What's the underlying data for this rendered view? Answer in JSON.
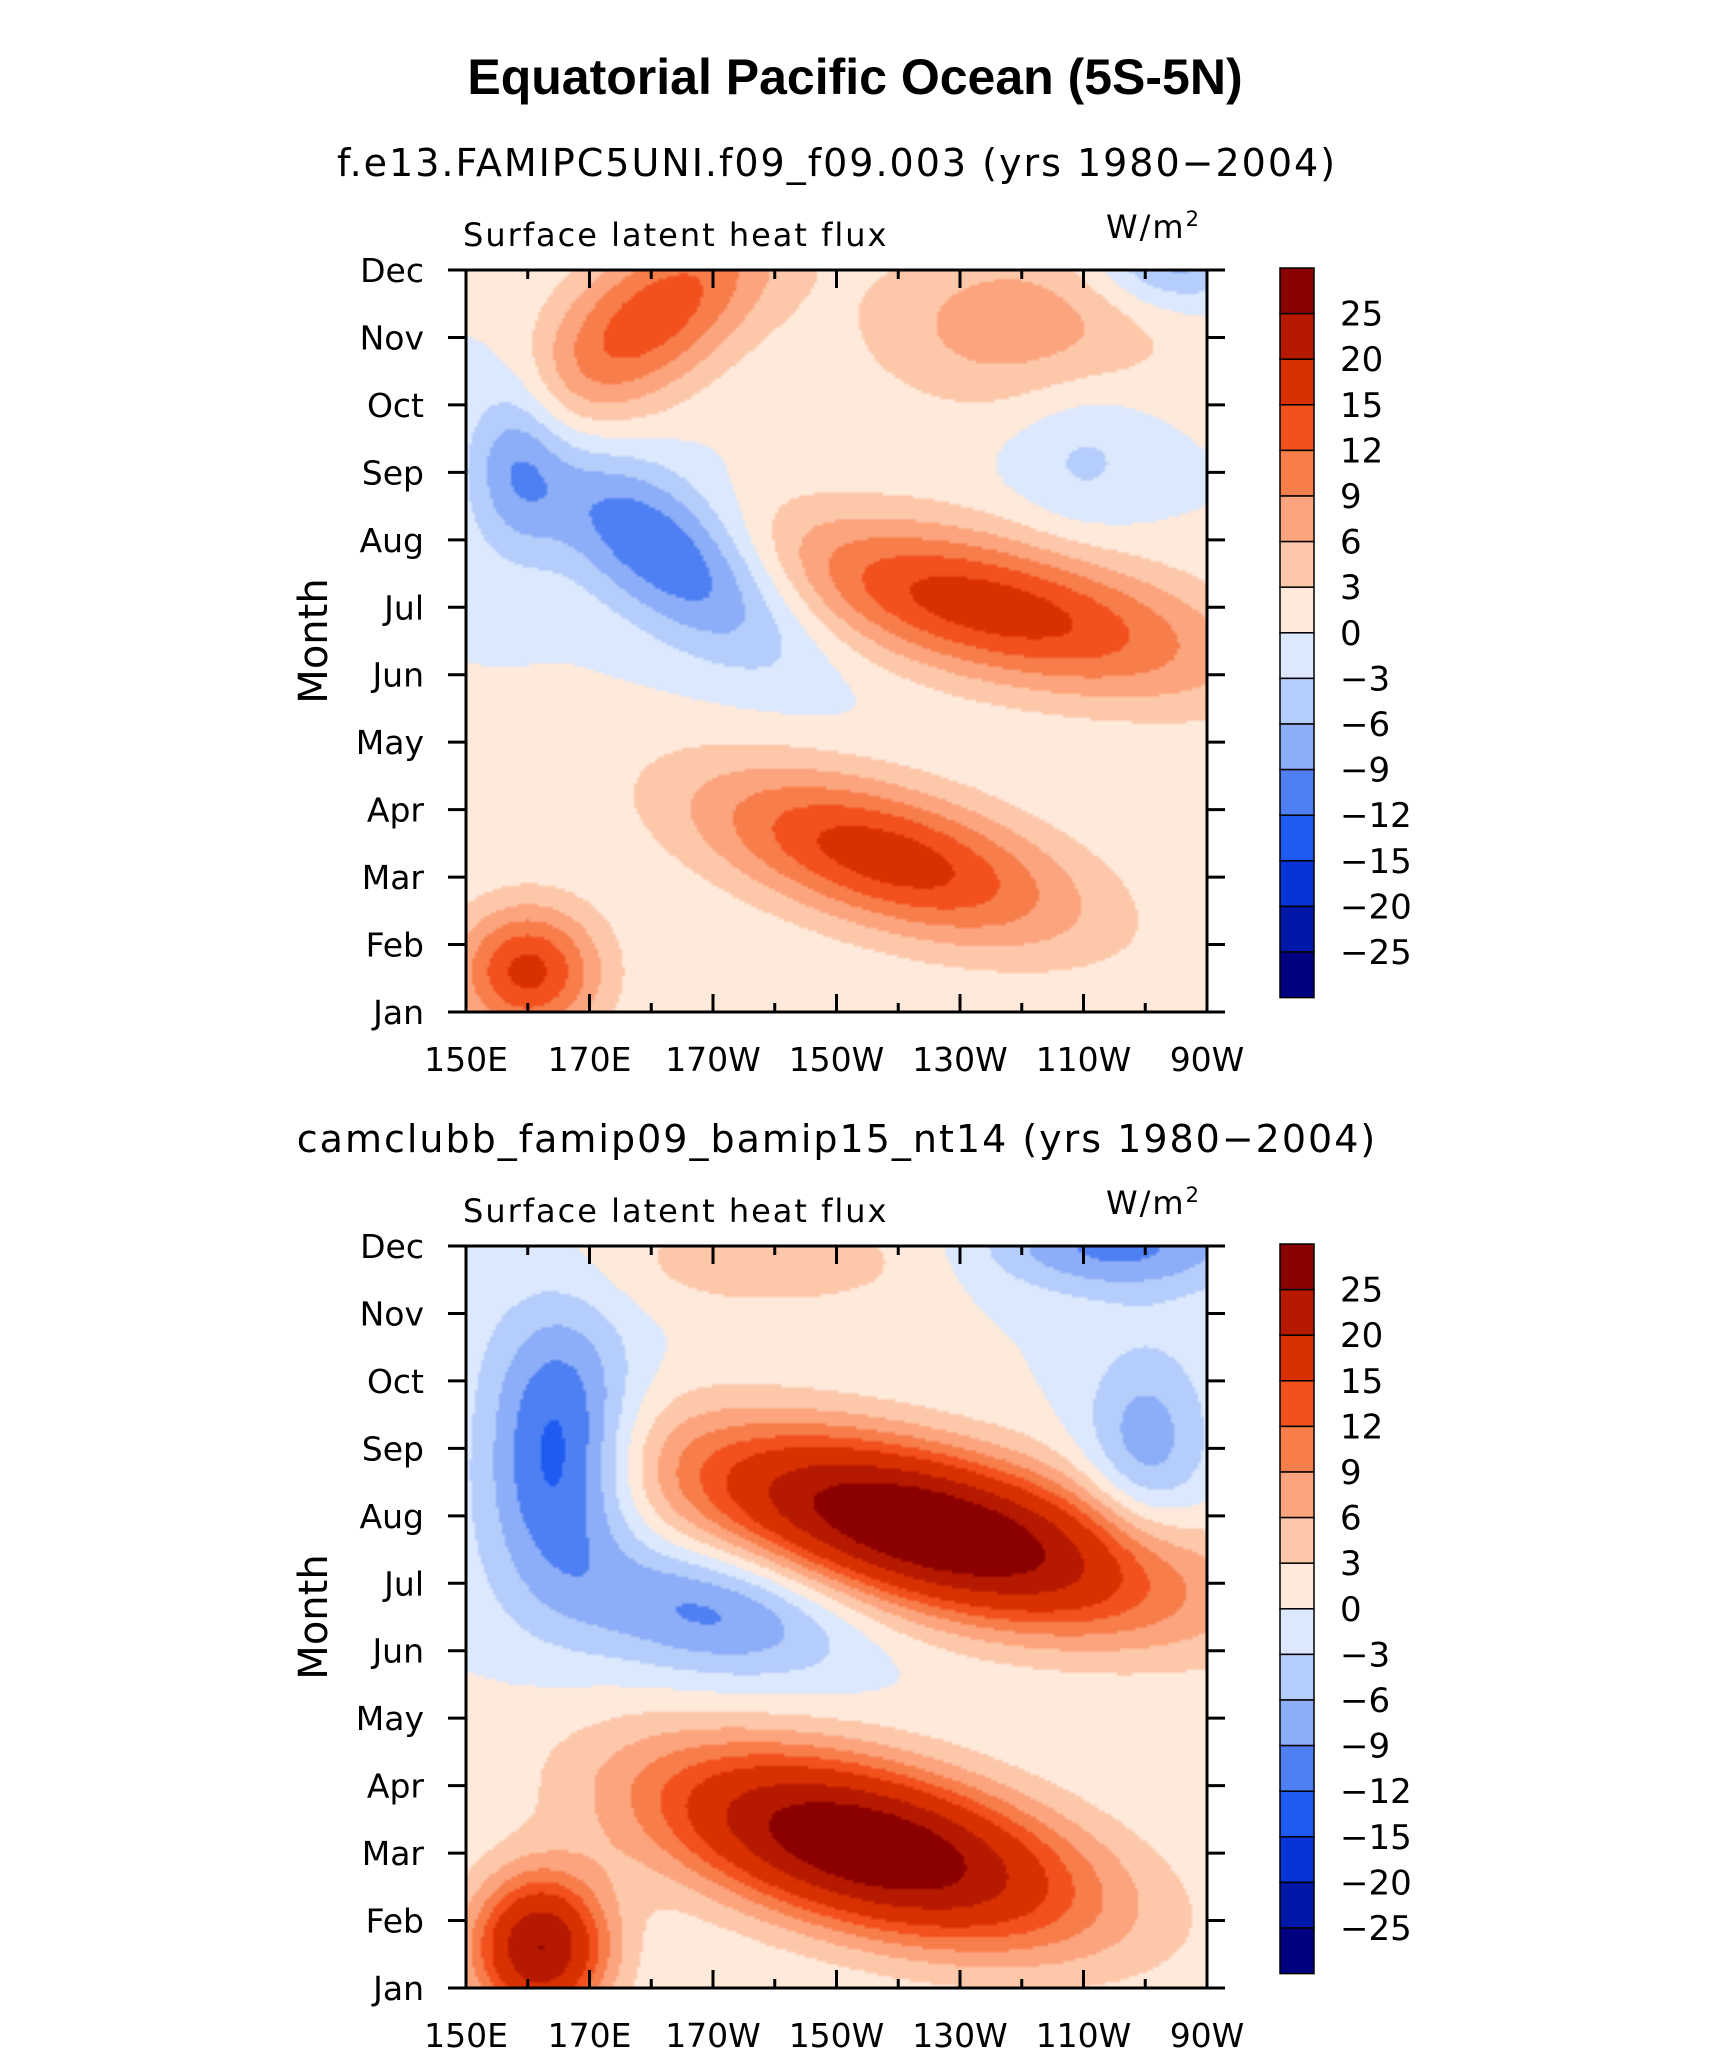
{
  "title": "Equatorial Pacific Ocean (5S-5N)",
  "colorbar": {
    "labels": [
      "25",
      "20",
      "15",
      "12",
      "9",
      "6",
      "3",
      "0",
      "−3",
      "−6",
      "−9",
      "−12",
      "−15",
      "−20",
      "−25"
    ],
    "colors": [
      "#8b0000",
      "#b51a00",
      "#d93000",
      "#f2501c",
      "#f77d4b",
      "#fca47e",
      "#fdc8aa",
      "#fee9db",
      "#dbe8fd",
      "#b5cdfb",
      "#8cadf7",
      "#4e80f3",
      "#1e5bf2",
      "#0535d8",
      "#0117a8",
      "#000080"
    ],
    "levels": [
      -25,
      -20,
      -15,
      -12,
      -9,
      -6,
      -3,
      0,
      3,
      6,
      9,
      12,
      15,
      20,
      25
    ]
  },
  "chart_data": [
    {
      "type": "heatmap",
      "subtitle": "f.e13.FAMIPC5UNI.f09_f09.003 (yrs 1980−2004)",
      "variable": "Surface latent heat flux",
      "units": "W/m",
      "units_sup": "2",
      "ylabel": "Month",
      "x_ticklabels": [
        "150E",
        "170E",
        "170W",
        "150W",
        "130W",
        "110W",
        "90W"
      ],
      "y_ticklabels": [
        "Jan",
        "Feb",
        "Mar",
        "Apr",
        "May",
        "Jun",
        "Jul",
        "Aug",
        "Sep",
        "Oct",
        "Nov",
        "Dec"
      ],
      "xlim": [
        150,
        270
      ],
      "ylim": [
        1,
        12
      ],
      "features": [
        {
          "amp": 17,
          "lon": 218,
          "month": 3.3,
          "sx": 26,
          "sy": 1.3,
          "slope": -13
        },
        {
          "amp": 16,
          "lon": 160,
          "month": 1.6,
          "sx": 12,
          "sy": 1.0,
          "slope": 0
        },
        {
          "amp": 14,
          "lon": 180,
          "month": 11.3,
          "sx": 16,
          "sy": 1.6,
          "slope": 8
        },
        {
          "amp": 17,
          "lon": 235,
          "month": 7.0,
          "sx": 32,
          "sy": 1.3,
          "slope": -16
        },
        {
          "amp": -14,
          "lon": 183,
          "month": 7.8,
          "sx": 16,
          "sy": 1.5,
          "slope": -9
        },
        {
          "amp": -8,
          "lon": 158,
          "month": 9.2,
          "sx": 8,
          "sy": 1.4,
          "slope": 0
        },
        {
          "amp": -9,
          "lon": 264,
          "month": 12.2,
          "sx": 13,
          "sy": 0.8,
          "slope": 0
        },
        {
          "amp": -4,
          "lon": 250,
          "month": 9.3,
          "sx": 12,
          "sy": 1.2,
          "slope": 0
        },
        {
          "amp": 8,
          "lon": 240,
          "month": 11.2,
          "sx": 26,
          "sy": 1.3,
          "slope": 0
        }
      ]
    },
    {
      "type": "heatmap",
      "subtitle": "camclubb_famip09_bamip15_nt14 (yrs 1980−2004)",
      "variable": "Surface latent heat flux",
      "units": "W/m",
      "units_sup": "2",
      "ylabel": "Month",
      "x_ticklabels": [
        "150E",
        "170E",
        "170W",
        "150W",
        "130W",
        "110W",
        "90W"
      ],
      "y_ticklabels": [
        "Jan",
        "Feb",
        "Mar",
        "Apr",
        "May",
        "Jun",
        "Jul",
        "Aug",
        "Sep",
        "Oct",
        "Nov",
        "Dec"
      ],
      "xlim": [
        150,
        270
      ],
      "ylim": [
        1,
        12
      ],
      "features": [
        {
          "amp": 31,
          "lon": 215,
          "month": 3.1,
          "sx": 30,
          "sy": 1.4,
          "slope": -12
        },
        {
          "amp": 25,
          "lon": 162,
          "month": 1.6,
          "sx": 11,
          "sy": 1.1,
          "slope": 0
        },
        {
          "amp": 32,
          "lon": 225,
          "month": 7.8,
          "sx": 32,
          "sy": 1.4,
          "slope": -15
        },
        {
          "amp": -15,
          "lon": 165,
          "month": 9.0,
          "sx": 12,
          "sy": 2.0,
          "slope": 0
        },
        {
          "amp": -10,
          "lon": 190,
          "month": 6.6,
          "sx": 22,
          "sy": 1.0,
          "slope": -5
        },
        {
          "amp": -8,
          "lon": 260,
          "month": 9.0,
          "sx": 10,
          "sy": 1.5,
          "slope": 0
        },
        {
          "amp": -10,
          "lon": 255,
          "month": 12.0,
          "sx": 22,
          "sy": 0.7,
          "slope": 0
        },
        {
          "amp": 5,
          "lon": 200,
          "month": 11.8,
          "sx": 30,
          "sy": 0.8,
          "slope": 0
        }
      ]
    }
  ]
}
